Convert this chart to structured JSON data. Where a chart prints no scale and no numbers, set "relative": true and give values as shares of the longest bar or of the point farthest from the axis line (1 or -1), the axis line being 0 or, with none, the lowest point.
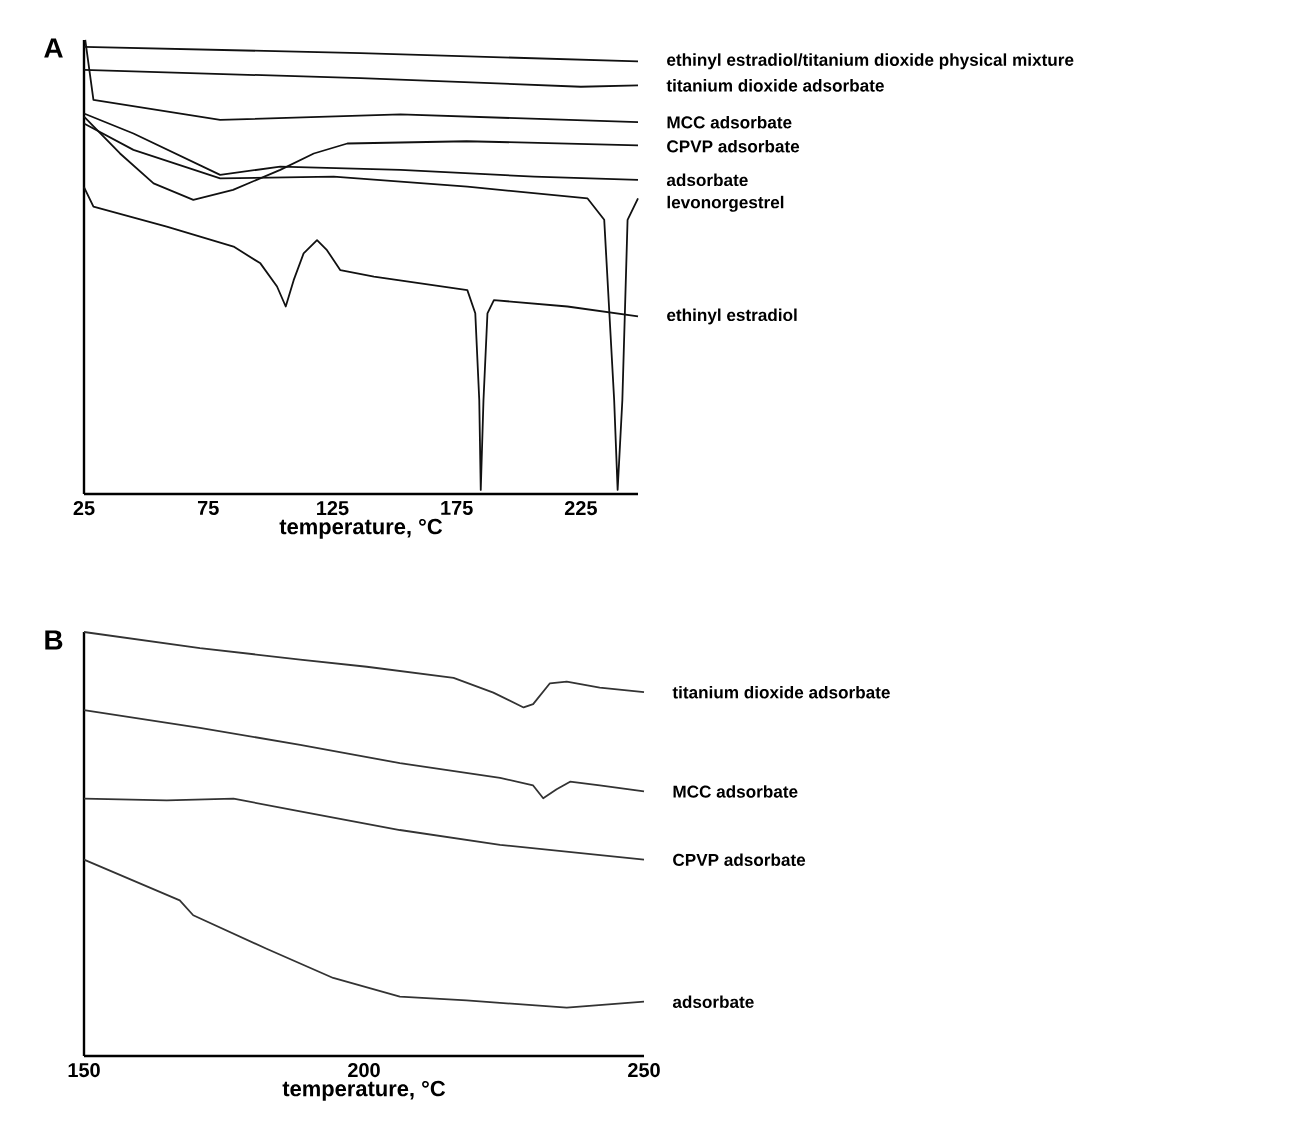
{
  "chart_data": [
    {
      "type": "line",
      "title": "A",
      "xlabel": "temperature, °C",
      "relative": true,
      "xlim": [
        25,
        248
      ],
      "xticks": [
        25,
        75,
        125,
        175,
        225
      ],
      "line_style": "solid",
      "marker": "none",
      "series": [
        {
          "name": "ethinyl estradiol/titanium dioxide physical mixture",
          "color": "#111111",
          "x": [
            25,
            136.3,
            248
          ],
          "values": [
            0.985,
            0.971,
            0.953
          ]
        },
        {
          "name": "titanium dioxide adsorbate",
          "color": "#111111",
          "x": [
            25,
            136.3,
            225,
            248
          ],
          "values": [
            0.934,
            0.916,
            0.897,
            0.9
          ]
        },
        {
          "name": "MCC adsorbate",
          "color": "#111111",
          "x": [
            25.5,
            28.8,
            79.8,
            152.4,
            248
          ],
          "values": [
            1.0,
            0.868,
            0.824,
            0.836,
            0.819
          ]
        },
        {
          "name": "CPVP adsorbate",
          "color": "#111111",
          "x": [
            25,
            39.5,
            53,
            69,
            85,
            104,
            117.5,
            131,
            179,
            248
          ],
          "values": [
            0.831,
            0.75,
            0.684,
            0.648,
            0.67,
            0.714,
            0.75,
            0.772,
            0.777,
            0.768
          ]
        },
        {
          "name": "adsorbate",
          "color": "#111111",
          "x": [
            25,
            44.9,
            79.8,
            104,
            152.4,
            206.2,
            248
          ],
          "values": [
            0.838,
            0.794,
            0.703,
            0.721,
            0.714,
            0.699,
            0.692
          ]
        },
        {
          "name": "levonorgestrel",
          "color": "#111111",
          "x": [
            25,
            44.9,
            79.8,
            125.5,
            179.3,
            227.7,
            234.4,
            238.4,
            239.8,
            241.7,
            243.8,
            248
          ],
          "values": [
            0.816,
            0.758,
            0.695,
            0.699,
            0.677,
            0.651,
            0.604,
            0.207,
            0.009,
            0.207,
            0.604,
            0.651
          ]
        },
        {
          "name": "ethinyl estradiol",
          "color": "#111111",
          "x": [
            25,
            28.8,
            58.3,
            85.2,
            96,
            102.7,
            106.2,
            109.4,
            113.4,
            118.8,
            122.8,
            128.2,
            141.7,
            179.3,
            182.5,
            184.1,
            184.7,
            185.8,
            187.4,
            190,
            219.6,
            248
          ],
          "values": [
            0.676,
            0.633,
            0.589,
            0.545,
            0.508,
            0.457,
            0.413,
            0.471,
            0.53,
            0.559,
            0.537,
            0.493,
            0.479,
            0.449,
            0.398,
            0.207,
            0.009,
            0.207,
            0.398,
            0.427,
            0.413,
            0.391
          ]
        }
      ]
    },
    {
      "type": "line",
      "title": "B",
      "xlabel": "temperature, °C",
      "relative": true,
      "xlim": [
        150,
        250
      ],
      "xticks": [
        150,
        200,
        250
      ],
      "line_style": "solid",
      "marker": "none",
      "series": [
        {
          "name": "titanium dioxide adsorbate",
          "color": "#333333",
          "x": [
            150,
            170.7,
            188.6,
            200.5,
            216,
            223.1,
            228.5,
            230.2,
            233.2,
            236.2,
            242.1,
            250
          ],
          "values": [
            1.0,
            0.962,
            0.935,
            0.918,
            0.892,
            0.857,
            0.822,
            0.83,
            0.879,
            0.883,
            0.869,
            0.858
          ]
        },
        {
          "name": "MCC adsorbate",
          "color": "#333333",
          "x": [
            150,
            170.7,
            188.6,
            206.4,
            224.3,
            230.2,
            232,
            234.4,
            236.8,
            242.1,
            250
          ],
          "values": [
            0.816,
            0.774,
            0.734,
            0.691,
            0.656,
            0.638,
            0.608,
            0.629,
            0.647,
            0.638,
            0.624
          ]
        },
        {
          "name": "CPVP adsorbate",
          "color": "#333333",
          "x": [
            150,
            164.8,
            176.7,
            188.6,
            206.4,
            224.3,
            250
          ],
          "values": [
            0.607,
            0.603,
            0.607,
            0.577,
            0.533,
            0.498,
            0.463
          ]
        },
        {
          "name": "adsorbate",
          "color": "#333333",
          "x": [
            150,
            167.1,
            169.5,
            182.6,
            194.5,
            206.4,
            218.3,
            236.2,
            250
          ],
          "values": [
            0.463,
            0.367,
            0.332,
            0.253,
            0.184,
            0.14,
            0.131,
            0.114,
            0.128
          ]
        }
      ]
    }
  ]
}
